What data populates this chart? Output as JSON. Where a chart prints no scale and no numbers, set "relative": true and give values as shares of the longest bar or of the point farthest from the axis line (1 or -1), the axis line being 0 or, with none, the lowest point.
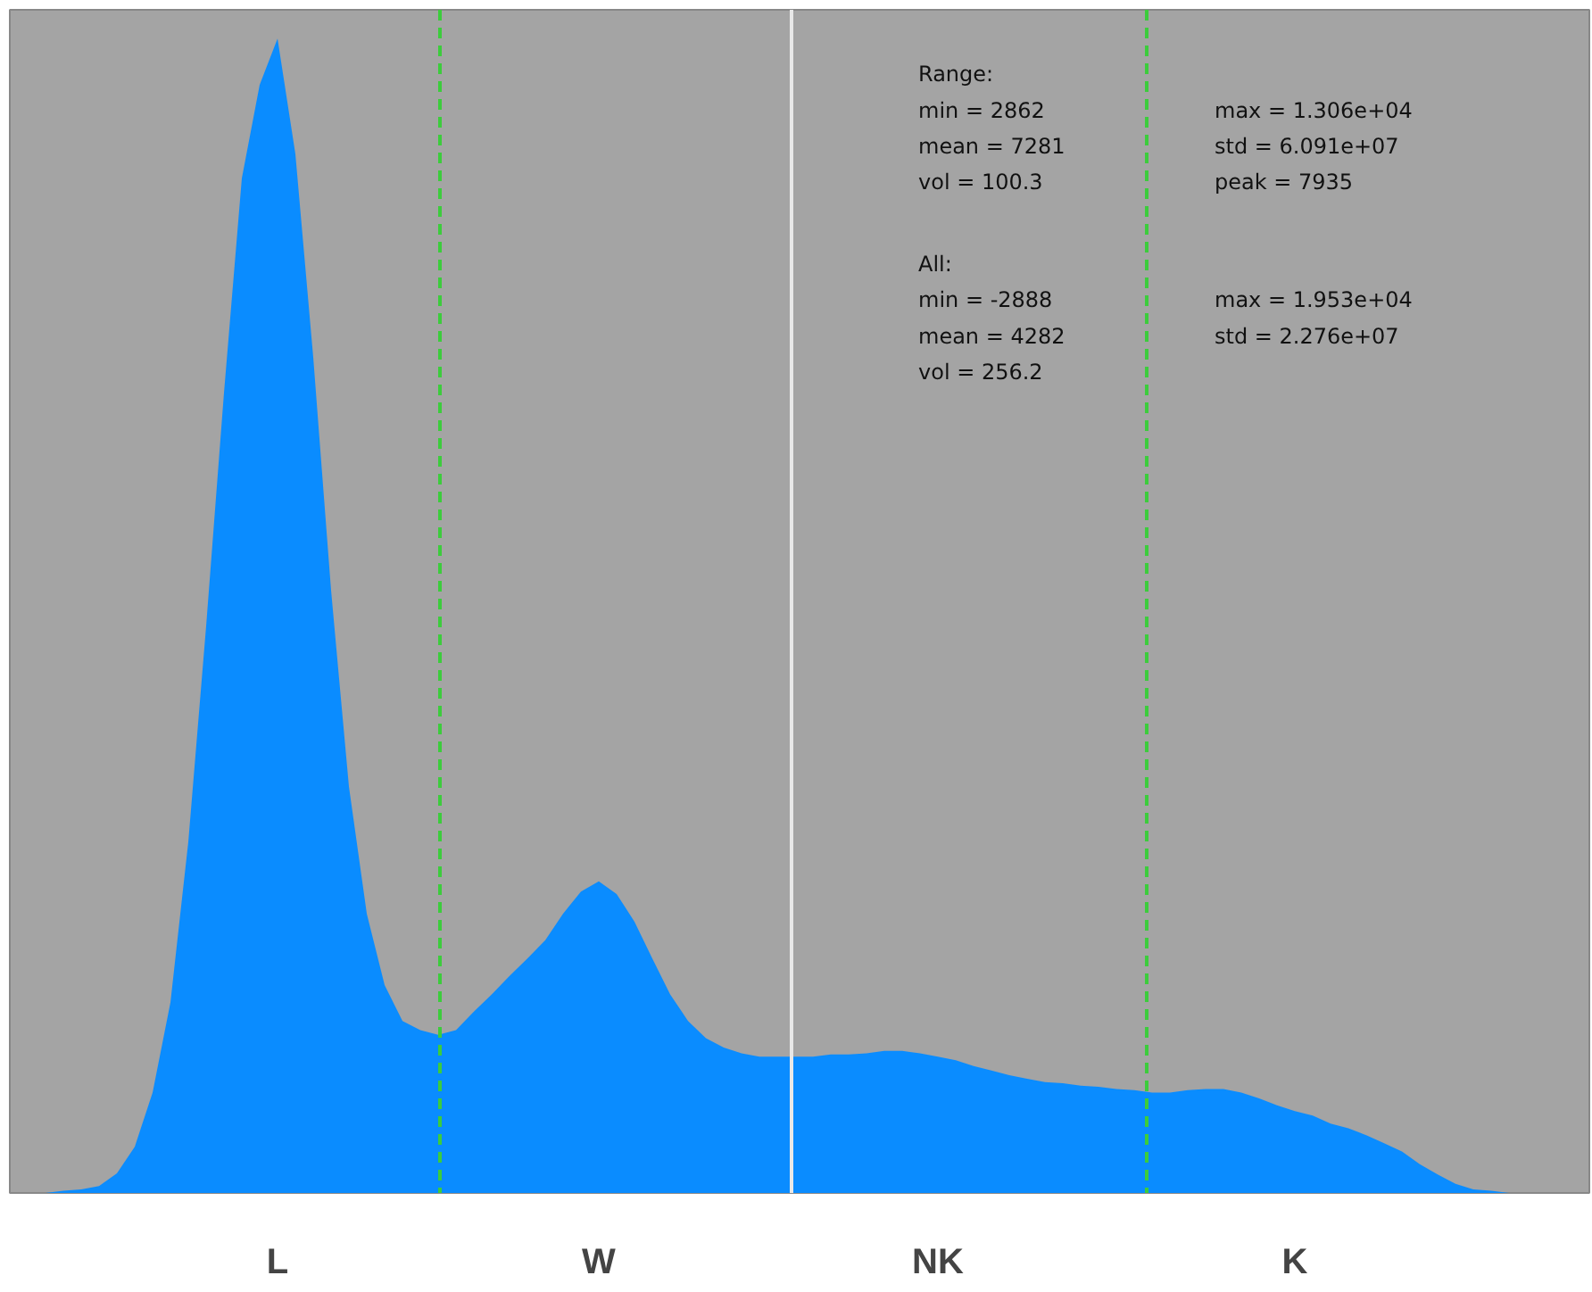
{
  "chart_data": {
    "type": "area",
    "relative": true,
    "color": "#0a8cff",
    "grid": false,
    "categories": [
      null,
      null,
      null,
      null,
      null,
      null,
      null,
      null,
      null,
      null,
      null,
      null,
      null,
      "L",
      null,
      null,
      null,
      null,
      null,
      null,
      null,
      null,
      null,
      null,
      null,
      null,
      null,
      null,
      null,
      null,
      null,
      "W",
      null,
      null,
      null,
      null,
      null,
      null,
      null,
      null,
      null,
      null,
      null,
      null,
      null,
      null,
      null,
      null,
      null,
      null,
      "NK",
      null,
      null,
      null,
      null,
      null,
      null,
      null,
      null,
      null,
      null,
      null,
      null,
      null,
      null,
      null,
      null,
      null,
      null,
      null,
      "K",
      null,
      null,
      null,
      null,
      null,
      null,
      null,
      null,
      null,
      null,
      null,
      null,
      null,
      null,
      null,
      null
    ],
    "values": [
      0,
      0.002,
      0.003,
      0.006,
      0.017,
      0.04,
      0.087,
      0.165,
      0.304,
      0.491,
      0.693,
      0.879,
      0.96,
      1.0,
      0.9,
      0.724,
      0.522,
      0.352,
      0.242,
      0.18,
      0.149,
      0.141,
      0.137,
      0.141,
      0.157,
      0.172,
      0.188,
      0.203,
      0.219,
      0.242,
      0.261,
      0.27,
      0.259,
      0.235,
      0.203,
      0.172,
      0.149,
      0.134,
      0.126,
      0.121,
      0.118,
      0.118,
      0.118,
      0.118,
      0.12,
      0.12,
      0.121,
      0.123,
      0.123,
      0.121,
      0.118,
      0.115,
      0.11,
      0.106,
      0.102,
      0.099,
      0.096,
      0.095,
      0.093,
      0.092,
      0.09,
      0.089,
      0.087,
      0.087,
      0.089,
      0.09,
      0.09,
      0.087,
      0.082,
      0.076,
      0.071,
      0.067,
      0.06,
      0.056,
      0.05,
      0.043,
      0.036,
      0.025,
      0.016,
      0.008,
      0.003,
      0.002,
      0,
      0,
      0,
      0,
      0
    ],
    "annotations": [
      "Range:",
      "min = 2862",
      "max = 1.306e+04",
      "mean = 7281",
      "std = 6.091e+07",
      "vol = 100.3",
      "peak = 7935",
      "All:",
      "min = -2888",
      "max = 1.953e+04",
      "mean = 4282",
      "std = 2.276e+07",
      "vol = 256.2"
    ]
  }
}
